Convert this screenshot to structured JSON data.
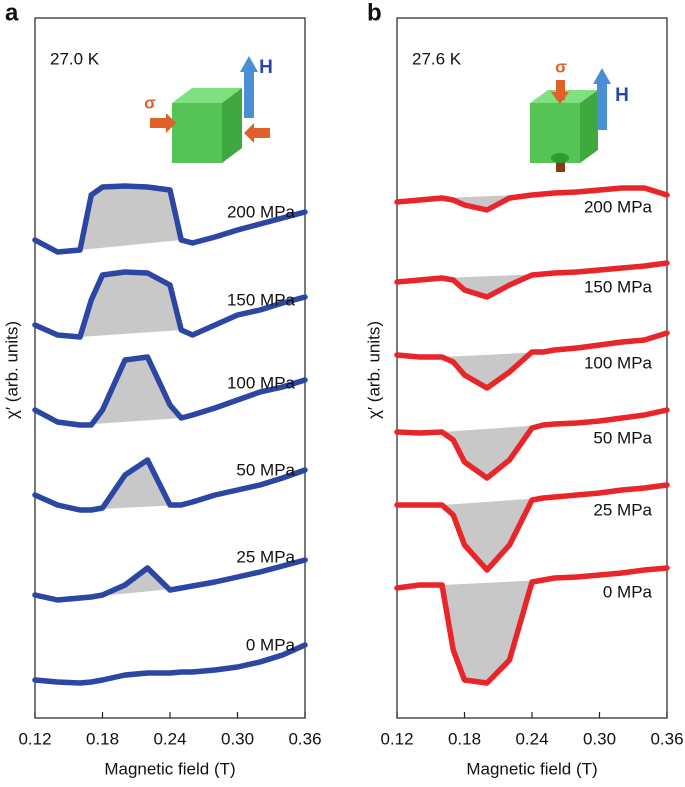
{
  "chart_data": [
    {
      "type": "line",
      "panel": "a",
      "temperature": "27.0 K",
      "stress_label": "σ",
      "field_label": "H",
      "xlabel": "Magnetic field (T)",
      "ylabel": "χ′ (arb. units)",
      "x": [
        0.12,
        0.14,
        0.16,
        0.17,
        0.18,
        0.2,
        0.22,
        0.24,
        0.25,
        0.26,
        0.28,
        0.3,
        0.32,
        0.34,
        0.36
      ],
      "xlim": [
        0.12,
        0.36
      ],
      "xticks": [
        0.12,
        0.18,
        0.24,
        {
          "value": 0.3,
          "label": "0.30"
        },
        0.36
      ],
      "ylim": [
        0,
        700
      ],
      "series": [
        {
          "name": "200 MPa",
          "color": "#2b46a3",
          "values": [
            478,
            466,
            468,
            523,
            531,
            532,
            531,
            528,
            478,
            475,
            481,
            488,
            494,
            500,
            506
          ]
        },
        {
          "name": "150 MPa",
          "color": "#2b46a3",
          "values": [
            393,
            383,
            381,
            418,
            443,
            446,
            445,
            433,
            388,
            383,
            393,
            403,
            408,
            415,
            421
          ]
        },
        {
          "name": "100 MPa",
          "color": "#2b46a3",
          "values": [
            308,
            296,
            293,
            293,
            308,
            358,
            361,
            313,
            300,
            303,
            310,
            318,
            326,
            331,
            338
          ]
        },
        {
          "name": "50 MPa",
          "color": "#2b46a3",
          "values": [
            223,
            213,
            208,
            208,
            210,
            243,
            258,
            213,
            213,
            216,
            223,
            228,
            233,
            240,
            248
          ]
        },
        {
          "name": "25 MPa",
          "color": "#2b46a3",
          "values": [
            123,
            118,
            120,
            121,
            123,
            133,
            150,
            128,
            130,
            132,
            136,
            141,
            146,
            152,
            158
          ]
        },
        {
          "name": "0 MPa",
          "color": "#2b46a3",
          "values": [
            38,
            36,
            35,
            36,
            38,
            43,
            45,
            45,
            46,
            46,
            48,
            51,
            56,
            63,
            73
          ]
        }
      ]
    },
    {
      "type": "line",
      "panel": "b",
      "temperature": "27.6 K",
      "stress_label": "σ",
      "field_label": "H",
      "xlabel": "Magnetic field (T)",
      "ylabel": "χ′ (arb. units)",
      "x": [
        0.12,
        0.14,
        0.16,
        0.17,
        0.18,
        0.2,
        0.22,
        0.24,
        0.25,
        0.26,
        0.28,
        0.3,
        0.32,
        0.34,
        0.36
      ],
      "xlim": [
        0.12,
        0.36
      ],
      "xticks": [
        0.12,
        0.18,
        0.24,
        {
          "value": 0.3,
          "label": "0.30"
        },
        0.36
      ],
      "ylim": [
        0,
        700
      ],
      "series": [
        {
          "name": "200 MPa",
          "color": "#e8262a",
          "values": [
            516,
            518,
            520,
            518,
            513,
            508,
            520,
            523,
            524,
            525,
            526,
            528,
            530,
            530,
            523
          ]
        },
        {
          "name": "150 MPa",
          "color": "#e8262a",
          "values": [
            436,
            438,
            440,
            438,
            428,
            421,
            433,
            443,
            444,
            445,
            446,
            448,
            450,
            452,
            455
          ]
        },
        {
          "name": "100 MPa",
          "color": "#e8262a",
          "values": [
            363,
            361,
            361,
            356,
            343,
            330,
            346,
            366,
            366,
            368,
            370,
            373,
            376,
            378,
            385
          ]
        },
        {
          "name": "50 MPa",
          "color": "#e8262a",
          "values": [
            286,
            285,
            286,
            278,
            256,
            240,
            258,
            290,
            293,
            294,
            295,
            297,
            300,
            303,
            308
          ]
        },
        {
          "name": "25 MPa",
          "color": "#e8262a",
          "values": [
            213,
            213,
            213,
            203,
            173,
            148,
            173,
            218,
            220,
            221,
            223,
            225,
            228,
            230,
            233
          ]
        },
        {
          "name": "0 MPa",
          "color": "#e8262a",
          "values": [
            130,
            133,
            133,
            68,
            38,
            35,
            58,
            136,
            138,
            140,
            141,
            143,
            145,
            148,
            150
          ]
        }
      ]
    }
  ]
}
